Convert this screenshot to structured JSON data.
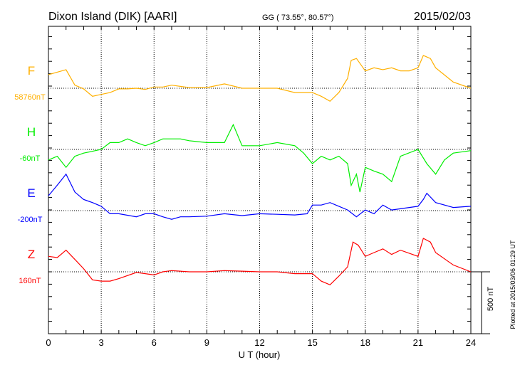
{
  "chart_data": {
    "type": "line",
    "title": "Dixon Island (DIK)  [AARI]",
    "coords": "GG ( 73.55°,  80.57°)",
    "date": "2015/02/03",
    "xlabel": "U T (hour)",
    "xlim": [
      0,
      24
    ],
    "xticks": [
      "0",
      "3",
      "6",
      "9",
      "12",
      "15",
      "18",
      "21",
      "24"
    ],
    "scale_bar": "500 nT",
    "plotted_note": "Plotted at 2015/03/06 01:29 UT",
    "series": [
      {
        "name": "F",
        "baseline": "58760nT",
        "color": "#ffb000",
        "x": [
          0,
          1,
          1.5,
          2,
          2.5,
          3,
          3.5,
          4,
          4.5,
          5,
          5.5,
          6,
          6.5,
          7,
          8,
          9,
          10,
          11,
          12,
          13,
          14,
          15,
          15.5,
          16,
          16.5,
          17,
          17.2,
          17.5,
          18,
          18.5,
          19,
          19.5,
          20,
          20.5,
          21,
          21.3,
          21.7,
          22,
          23,
          24
        ],
        "values": [
          110,
          150,
          25,
          -5,
          -65,
          -50,
          -35,
          -5,
          -5,
          0,
          -10,
          10,
          10,
          25,
          5,
          5,
          35,
          0,
          0,
          0,
          -35,
          -35,
          -65,
          -105,
          -35,
          80,
          225,
          240,
          140,
          165,
          150,
          165,
          140,
          140,
          165,
          265,
          240,
          165,
          50,
          0
        ]
      },
      {
        "name": "H",
        "baseline": "-60nT",
        "color": "#00ee00",
        "x": [
          0,
          0.5,
          1,
          1.5,
          2,
          3,
          3.5,
          4,
          4.5,
          5,
          5.5,
          6,
          6.5,
          7,
          7.5,
          8,
          9,
          10,
          10.5,
          11,
          12,
          13,
          14,
          14.5,
          15,
          15.5,
          16,
          16.5,
          17,
          17.2,
          17.5,
          17.7,
          18,
          18.5,
          19,
          19.5,
          20,
          21,
          21.5,
          22,
          22.5,
          23,
          24
        ],
        "values": [
          -85,
          -55,
          -145,
          -55,
          -30,
          0,
          55,
          55,
          85,
          55,
          30,
          55,
          85,
          85,
          85,
          70,
          55,
          55,
          200,
          30,
          30,
          55,
          30,
          -30,
          -115,
          -55,
          -85,
          -55,
          -115,
          -290,
          -200,
          -345,
          -145,
          -175,
          -200,
          -260,
          -55,
          0,
          -115,
          -200,
          -85,
          -30,
          -10
        ]
      },
      {
        "name": "E",
        "baseline": "-200nT",
        "color": "#0000ff",
        "x": [
          0,
          0.5,
          1,
          1.5,
          2,
          2.5,
          3,
          3.5,
          4,
          5,
          5.5,
          6,
          6.5,
          7,
          7.5,
          8,
          9,
          10,
          11,
          12,
          13,
          14,
          14.7,
          15,
          15.5,
          16,
          16.5,
          17,
          17.5,
          18,
          18.5,
          19,
          19.5,
          20,
          21,
          21.3,
          21.5,
          22,
          23,
          24
        ],
        "values": [
          120,
          205,
          295,
          150,
          90,
          65,
          35,
          -25,
          -25,
          -50,
          -25,
          -25,
          -50,
          -70,
          -50,
          -50,
          -45,
          -25,
          -40,
          -25,
          -30,
          -35,
          -25,
          45,
          45,
          65,
          35,
          5,
          -50,
          5,
          -25,
          45,
          5,
          15,
          35,
          90,
          140,
          65,
          25,
          35
        ]
      },
      {
        "name": "Z",
        "baseline": "160nT",
        "color": "#ff0000",
        "x": [
          0,
          0.5,
          1,
          1.5,
          2,
          2.5,
          3,
          3.5,
          4,
          5,
          6,
          6.5,
          7,
          8,
          9,
          10,
          11,
          12,
          13,
          14,
          15,
          15.5,
          16,
          16.5,
          17,
          17.3,
          17.6,
          18,
          18.5,
          19,
          19.5,
          20,
          21,
          21.3,
          21.7,
          22,
          23,
          24
        ],
        "values": [
          125,
          115,
          175,
          100,
          25,
          -65,
          -75,
          -75,
          -55,
          -5,
          -25,
          0,
          10,
          0,
          0,
          10,
          5,
          0,
          0,
          -15,
          -15,
          -75,
          -105,
          -35,
          40,
          240,
          215,
          125,
          155,
          185,
          140,
          175,
          125,
          270,
          240,
          155,
          55,
          0
        ]
      }
    ]
  }
}
